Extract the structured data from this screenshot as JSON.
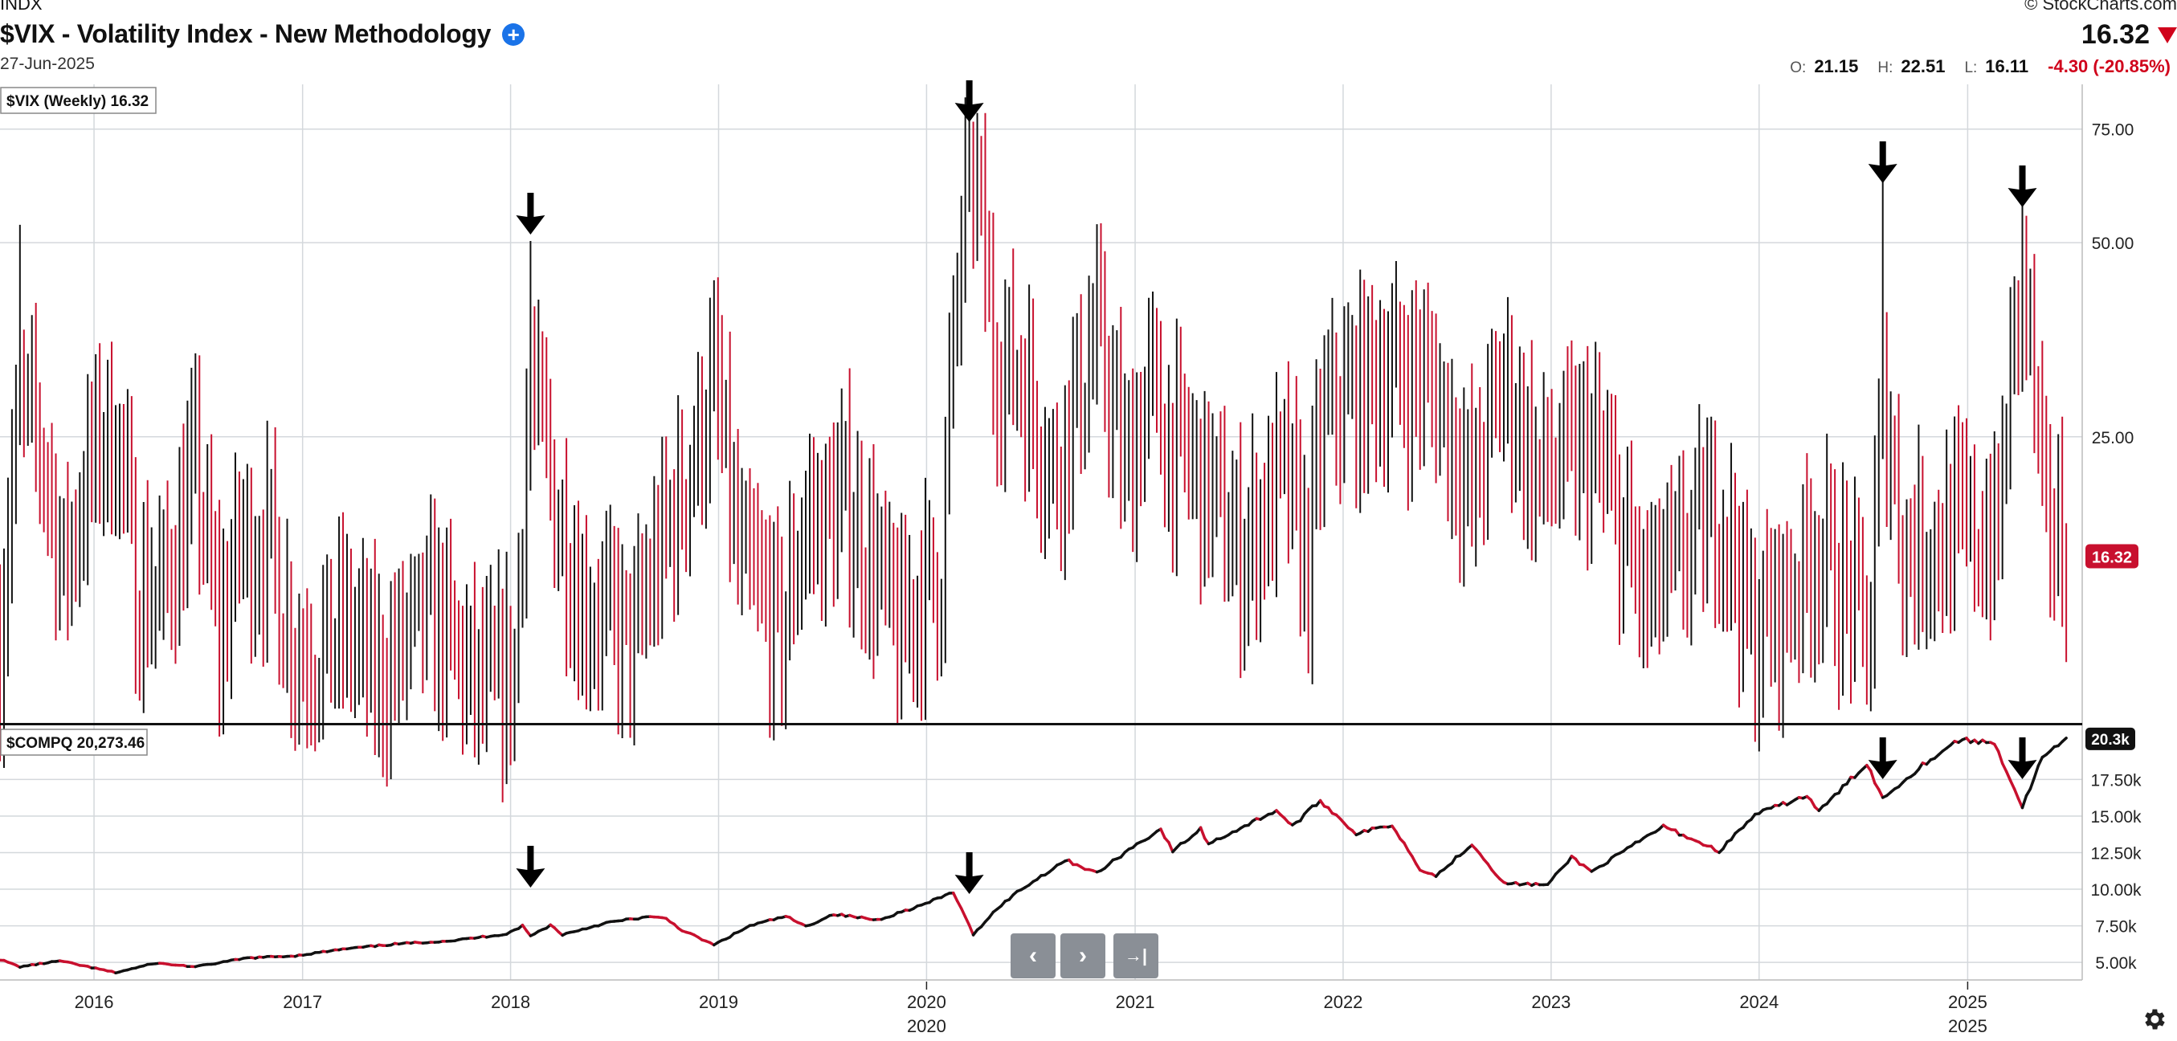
{
  "header": {
    "exchange": "INDX",
    "title": "$VIX - Volatility Index - New Methodology",
    "date": "27-Jun-2025",
    "brand": "© StockCharts.com",
    "last_price": "16.32",
    "ohlc": {
      "open_label": "O:",
      "open": "21.15",
      "high_label": "H:",
      "high": "22.51",
      "low_label": "L:",
      "low": "16.11",
      "change": "-4.30 (-20.85%)"
    }
  },
  "colors": {
    "up": "#111111",
    "down": "#c8102e",
    "grid": "#d4d8dc",
    "label_bg": "#c8102e"
  },
  "chart_data": [
    {
      "type": "ohlc",
      "name": "$VIX (Weekly) 16.32",
      "scale": "log",
      "y_ticks": [
        25,
        50,
        75
      ],
      "y_tick_labels": [
        "25.00",
        "50.00",
        "75.00"
      ],
      "ylim": [
        9,
        88
      ],
      "last_label": "16.32",
      "anchors": [
        [
          "2015-07-20",
          12.1
        ],
        [
          "2015-08-24",
          28.0
        ],
        [
          "2015-09-28",
          24.5
        ],
        [
          "2015-11-09",
          15.5
        ],
        [
          "2016-01-11",
          24.8
        ],
        [
          "2016-02-08",
          26.0
        ],
        [
          "2016-03-14",
          15.0
        ],
        [
          "2016-05-02",
          14.5
        ],
        [
          "2016-06-27",
          22.0
        ],
        [
          "2016-08-08",
          12.0
        ],
        [
          "2016-09-12",
          17.5
        ],
        [
          "2016-11-07",
          17.0
        ],
        [
          "2016-12-19",
          11.8
        ],
        [
          "2017-03-20",
          12.5
        ],
        [
          "2017-05-15",
          10.5
        ],
        [
          "2017-08-14",
          13.5
        ],
        [
          "2017-11-06",
          10.0
        ],
        [
          "2018-01-08",
          11.0
        ],
        [
          "2018-02-05",
          30.0
        ],
        [
          "2018-03-26",
          19.0
        ],
        [
          "2018-05-07",
          14.0
        ],
        [
          "2018-08-06",
          12.0
        ],
        [
          "2018-10-22",
          20.0
        ],
        [
          "2018-12-24",
          30.0
        ],
        [
          "2019-02-04",
          16.0
        ],
        [
          "2019-04-22",
          12.5
        ],
        [
          "2019-05-27",
          18.0
        ],
        [
          "2019-08-12",
          20.0
        ],
        [
          "2019-11-11",
          12.5
        ],
        [
          "2020-01-27",
          16.0
        ],
        [
          "2020-02-24",
          40.0
        ],
        [
          "2020-03-16",
          72.0
        ],
        [
          "2020-04-27",
          34.0
        ],
        [
          "2020-06-15",
          32.0
        ],
        [
          "2020-08-10",
          22.0
        ],
        [
          "2020-10-26",
          36.0
        ],
        [
          "2020-12-14",
          22.0
        ],
        [
          "2021-01-25",
          30.0
        ],
        [
          "2021-03-01",
          25.0
        ],
        [
          "2021-05-10",
          21.0
        ],
        [
          "2021-07-05",
          16.5
        ],
        [
          "2021-09-20",
          22.0
        ],
        [
          "2021-11-01",
          16.0
        ],
        [
          "2021-11-29",
          27.0
        ],
        [
          "2022-01-24",
          30.0
        ],
        [
          "2022-03-07",
          32.0
        ],
        [
          "2022-05-09",
          31.0
        ],
        [
          "2022-06-13",
          30.0
        ],
        [
          "2022-08-15",
          20.0
        ],
        [
          "2022-10-10",
          31.0
        ],
        [
          "2022-12-05",
          22.0
        ],
        [
          "2023-03-13",
          24.0
        ],
        [
          "2023-06-12",
          14.0
        ],
        [
          "2023-08-14",
          16.0
        ],
        [
          "2023-10-23",
          20.0
        ],
        [
          "2023-12-18",
          12.5
        ],
        [
          "2024-02-12",
          14.0
        ],
        [
          "2024-04-15",
          17.0
        ],
        [
          "2024-07-15",
          12.5
        ],
        [
          "2024-08-05",
          30.0
        ],
        [
          "2024-09-09",
          17.0
        ],
        [
          "2024-12-16",
          18.0
        ],
        [
          "2025-02-24",
          18.0
        ],
        [
          "2025-04-07",
          45.0
        ],
        [
          "2025-05-12",
          19.0
        ],
        [
          "2025-06-27",
          17.0
        ]
      ],
      "spikes": [
        [
          "2015-08-24",
          53.3
        ],
        [
          "2018-02-05",
          50.3
        ],
        [
          "2020-03-16",
          82.7
        ],
        [
          "2020-03-23",
          77.0
        ],
        [
          "2024-08-05",
          65.7
        ],
        [
          "2025-04-07",
          60.1
        ]
      ],
      "arrows": [
        "2018-02-05",
        "2020-03-16",
        "2024-08-05",
        "2025-04-07"
      ]
    },
    {
      "type": "line",
      "name": "$COMPQ 20,273.46",
      "y_ticks": [
        5000,
        7500,
        10000,
        12500,
        15000,
        17500
      ],
      "y_tick_labels": [
        "5.00k",
        "7.50k",
        "10.00k",
        "12.50k",
        "15.00k",
        "17.50k"
      ],
      "ylim": [
        3800,
        21200
      ],
      "last_label": "20.3k",
      "x_labels": [
        "2016",
        "2017",
        "2018",
        "2019",
        "2020",
        "2021",
        "2022",
        "2023",
        "2024",
        "2025"
      ],
      "x_labels_secondary": [
        "2020",
        "2025"
      ],
      "points": [
        [
          "2015-07-20",
          5200
        ],
        [
          "2015-08-24",
          4700
        ],
        [
          "2015-11-02",
          5100
        ],
        [
          "2016-02-08",
          4300
        ],
        [
          "2016-04-18",
          4950
        ],
        [
          "2016-06-27",
          4700
        ],
        [
          "2016-09-26",
          5300
        ],
        [
          "2016-12-19",
          5450
        ],
        [
          "2017-03-13",
          5900
        ],
        [
          "2017-06-12",
          6250
        ],
        [
          "2017-09-25",
          6500
        ],
        [
          "2017-12-25",
          6950
        ],
        [
          "2018-01-22",
          7500
        ],
        [
          "2018-02-05",
          6800
        ],
        [
          "2018-03-12",
          7550
        ],
        [
          "2018-04-02",
          6900
        ],
        [
          "2018-06-18",
          7700
        ],
        [
          "2018-08-27",
          8100
        ],
        [
          "2018-10-01",
          8000
        ],
        [
          "2018-10-29",
          7200
        ],
        [
          "2018-12-24",
          6190
        ],
        [
          "2019-02-25",
          7500
        ],
        [
          "2019-04-29",
          8150
        ],
        [
          "2019-06-03",
          7450
        ],
        [
          "2019-07-22",
          8300
        ],
        [
          "2019-10-07",
          7900
        ],
        [
          "2019-12-30",
          9000
        ],
        [
          "2020-02-17",
          9800
        ],
        [
          "2020-03-23",
          6900
        ],
        [
          "2020-05-04",
          8700
        ],
        [
          "2020-06-08",
          9800
        ],
        [
          "2020-09-01",
          12000
        ],
        [
          "2020-10-26",
          11100
        ],
        [
          "2020-12-28",
          12900
        ],
        [
          "2021-02-15",
          14100
        ],
        [
          "2021-03-08",
          12600
        ],
        [
          "2021-04-26",
          14100
        ],
        [
          "2021-05-10",
          13100
        ],
        [
          "2021-09-06",
          15400
        ],
        [
          "2021-10-04",
          14300
        ],
        [
          "2021-11-22",
          16050
        ],
        [
          "2022-01-24",
          13800
        ],
        [
          "2022-03-28",
          14400
        ],
        [
          "2022-05-16",
          11400
        ],
        [
          "2022-06-13",
          10900
        ],
        [
          "2022-08-15",
          13100
        ],
        [
          "2022-10-10",
          10400
        ],
        [
          "2022-12-26",
          10300
        ],
        [
          "2023-02-06",
          12200
        ],
        [
          "2023-03-13",
          11200
        ],
        [
          "2023-07-17",
          14300
        ],
        [
          "2023-10-23",
          12600
        ],
        [
          "2023-12-25",
          15100
        ],
        [
          "2024-03-25",
          16400
        ],
        [
          "2024-04-15",
          15300
        ],
        [
          "2024-07-08",
          18600
        ],
        [
          "2024-08-05",
          16200
        ],
        [
          "2024-10-14",
          18500
        ],
        [
          "2024-12-16",
          20200
        ],
        [
          "2025-02-17",
          20000
        ],
        [
          "2025-04-07",
          15600
        ],
        [
          "2025-05-12",
          19000
        ],
        [
          "2025-06-27",
          20273
        ]
      ],
      "arrows": [
        "2018-02-05",
        "2020-03-16",
        "2024-08-05",
        "2025-04-07"
      ]
    }
  ],
  "nav": {
    "prev": "‹",
    "next": "›",
    "end": "→|"
  }
}
